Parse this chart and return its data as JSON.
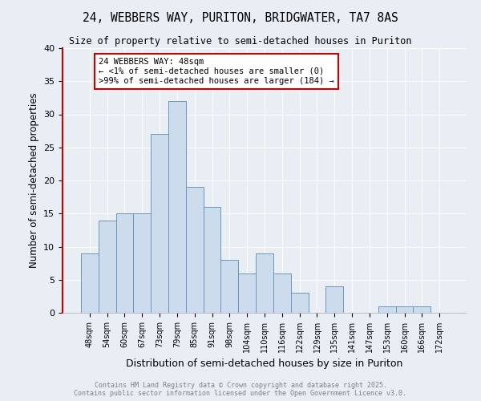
{
  "title1": "24, WEBBERS WAY, PURITON, BRIDGWATER, TA7 8AS",
  "title2": "Size of property relative to semi-detached houses in Puriton",
  "xlabel": "Distribution of semi-detached houses by size in Puriton",
  "ylabel": "Number of semi-detached properties",
  "categories": [
    "48sqm",
    "54sqm",
    "60sqm",
    "67sqm",
    "73sqm",
    "79sqm",
    "85sqm",
    "91sqm",
    "98sqm",
    "104sqm",
    "110sqm",
    "116sqm",
    "122sqm",
    "129sqm",
    "135sqm",
    "141sqm",
    "147sqm",
    "153sqm",
    "160sqm",
    "166sqm",
    "172sqm"
  ],
  "values": [
    9,
    14,
    15,
    15,
    27,
    32,
    19,
    16,
    8,
    6,
    9,
    6,
    3,
    0,
    4,
    0,
    0,
    1,
    1,
    1,
    0
  ],
  "bar_color": "#ccdcec",
  "bar_edge_color": "#6699bb",
  "annotation_title": "24 WEBBERS WAY: 48sqm",
  "annotation_line1": "← <1% of semi-detached houses are smaller (0)",
  "annotation_line2": ">99% of semi-detached houses are larger (184) →",
  "annotation_box_color": "#ffffff",
  "annotation_box_edge": "#cc0000",
  "footer1": "Contains HM Land Registry data © Crown copyright and database right 2025.",
  "footer2": "Contains public sector information licensed under the Open Government Licence v3.0.",
  "ylim": [
    0,
    40
  ],
  "yticks": [
    0,
    5,
    10,
    15,
    20,
    25,
    30,
    35,
    40
  ],
  "background_color": "#e8eef4"
}
